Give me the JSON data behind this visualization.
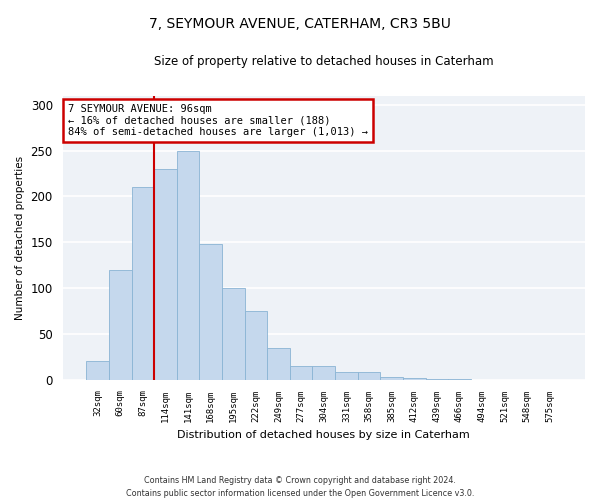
{
  "title1": "7, SEYMOUR AVENUE, CATERHAM, CR3 5BU",
  "title2": "Size of property relative to detached houses in Caterham",
  "xlabel": "Distribution of detached houses by size in Caterham",
  "ylabel": "Number of detached properties",
  "categories": [
    "32sqm",
    "60sqm",
    "87sqm",
    "114sqm",
    "141sqm",
    "168sqm",
    "195sqm",
    "222sqm",
    "249sqm",
    "277sqm",
    "304sqm",
    "331sqm",
    "358sqm",
    "385sqm",
    "412sqm",
    "439sqm",
    "466sqm",
    "494sqm",
    "521sqm",
    "548sqm",
    "575sqm"
  ],
  "bar_heights": [
    20,
    120,
    210,
    230,
    250,
    148,
    100,
    75,
    35,
    15,
    15,
    8,
    8,
    3,
    2,
    1,
    1,
    0,
    0,
    0,
    0
  ],
  "bar_color": "#c5d8ed",
  "bar_edge_color": "#8ab4d4",
  "property_label": "7 SEYMOUR AVENUE: 96sqm",
  "annotation_line1": "← 16% of detached houses are smaller (188)",
  "annotation_line2": "84% of semi-detached houses are larger (1,013) →",
  "vline_color": "#cc0000",
  "ylim": [
    0,
    310
  ],
  "yticks": [
    0,
    50,
    100,
    150,
    200,
    250,
    300
  ],
  "annotation_box_facecolor": "#ffffff",
  "annotation_box_edgecolor": "#cc0000",
  "footer1": "Contains HM Land Registry data © Crown copyright and database right 2024.",
  "footer2": "Contains public sector information licensed under the Open Government Licence v3.0.",
  "bg_color": "#ffffff",
  "plot_bg_color": "#eef2f7",
  "grid_color": "#ffffff"
}
